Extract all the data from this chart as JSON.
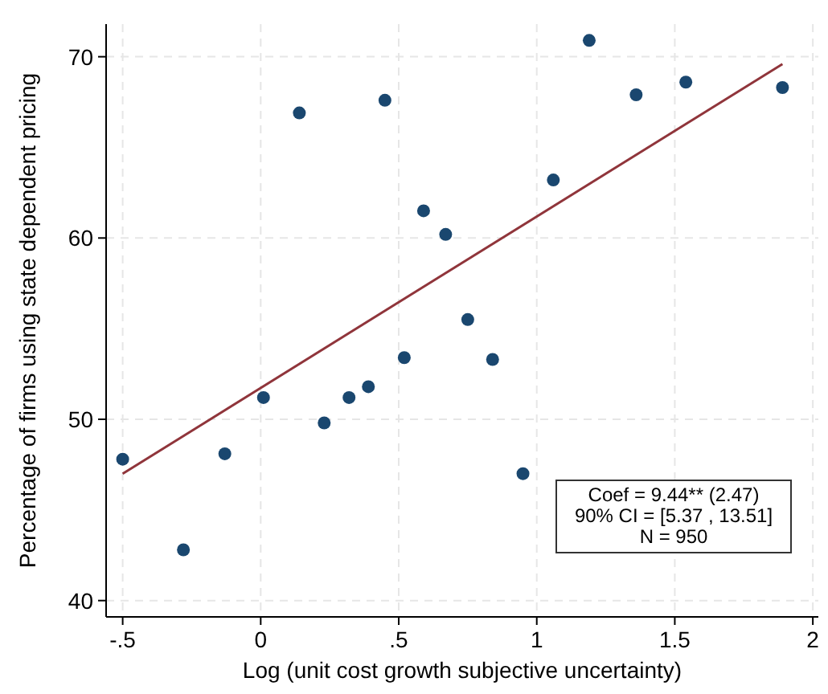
{
  "chart_data": {
    "type": "scatter",
    "xlabel": "Log (unit cost growth subjective uncertainty)",
    "ylabel": "Percentage of firms using state dependent pricing",
    "xlim": [
      -0.56,
      2.02
    ],
    "ylim": [
      39.1,
      71.8
    ],
    "xticks": [
      {
        "value": -0.5,
        "label": "-.5"
      },
      0,
      {
        "value": 0.5,
        "label": ".5"
      },
      1,
      1.5,
      2
    ],
    "yticks": [
      40,
      50,
      60,
      70
    ],
    "grid": true,
    "series": [
      {
        "marker": "circle",
        "color": "#1a476f",
        "x": [
          -0.5,
          -0.28,
          -0.13,
          0.01,
          0.14,
          0.23,
          0.32,
          0.39,
          0.45,
          0.52,
          0.59,
          0.67,
          0.75,
          0.84,
          0.95,
          1.06,
          1.19,
          1.36,
          1.54,
          1.89
        ],
        "values": [
          47.8,
          42.8,
          48.1,
          51.2,
          66.9,
          49.8,
          51.2,
          51.8,
          67.6,
          53.4,
          61.5,
          60.2,
          55.5,
          53.3,
          47.0,
          63.2,
          70.9,
          67.9,
          68.6,
          68.3
        ]
      },
      {
        "type": "line",
        "color": "#90353b",
        "x": [
          -0.5,
          1.89
        ],
        "values": [
          47.0,
          69.6
        ]
      }
    ],
    "annotations": [
      "Coef = 9.44**  (2.47)\n90% CI = [5.37 , 13.51]\nN = 950"
    ]
  }
}
